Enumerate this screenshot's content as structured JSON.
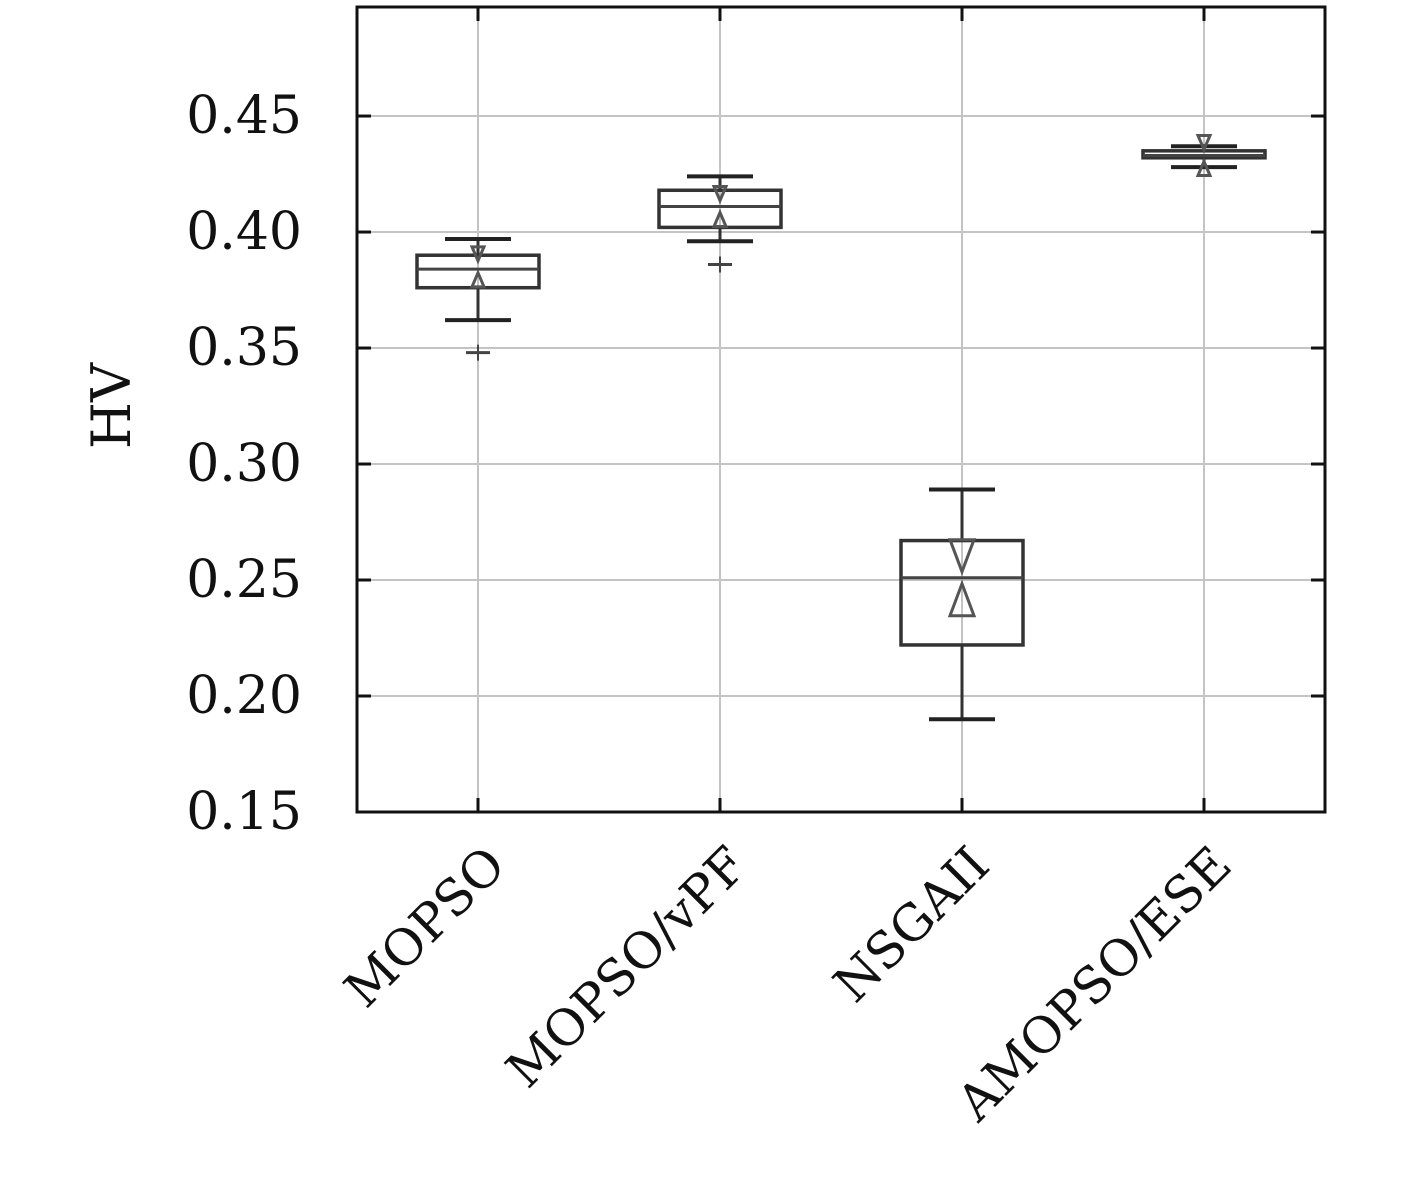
{
  "chart_data": {
    "type": "box",
    "title": "",
    "xlabel": "",
    "ylabel": "HV",
    "ylim": [
      0.15,
      0.497
    ],
    "yticks": [
      "0.15",
      "0.20",
      "0.25",
      "0.30",
      "0.35",
      "0.40",
      "0.45"
    ],
    "grid": true,
    "categories": [
      "MOPSO",
      "MOPSO/vPF",
      "NSGAII",
      "AMOPSO/ESE"
    ],
    "series": [
      {
        "values": [
          {
            "whisker_low": 0.362,
            "q1": 0.376,
            "median": 0.384,
            "q3": 0.39,
            "whisker_high": 0.397,
            "mean": 0.385,
            "outliers": [
              0.348
            ]
          },
          {
            "whisker_low": 0.396,
            "q1": 0.402,
            "median": 0.411,
            "q3": 0.418,
            "whisker_high": 0.424,
            "mean": 0.411,
            "outliers": [
              0.386
            ]
          },
          {
            "whisker_low": 0.19,
            "q1": 0.222,
            "median": 0.251,
            "q3": 0.267,
            "whisker_high": 0.289,
            "mean": 0.251,
            "outliers": []
          },
          {
            "whisker_low": 0.428,
            "q1": 0.432,
            "median": 0.433,
            "q3": 0.435,
            "whisker_high": 0.437,
            "mean": 0.433,
            "outliers": []
          }
        ]
      }
    ]
  }
}
